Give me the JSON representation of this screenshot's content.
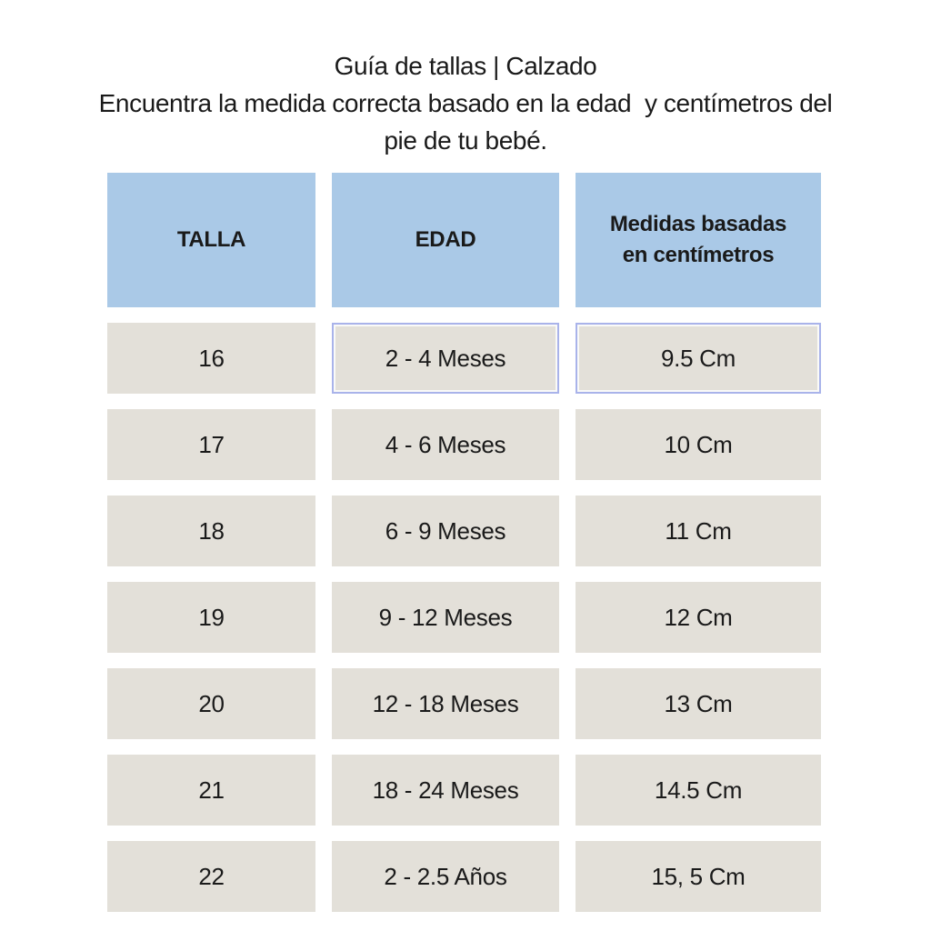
{
  "page": {
    "title": "Guía de tallas | Calzado",
    "subtitle_lines": [
      "Encuentra la medida correcta basado en la edad  y centímetros del",
      "pie de tu bebé."
    ]
  },
  "table": {
    "columns": [
      {
        "key": "talla",
        "label": "TALLA"
      },
      {
        "key": "edad",
        "label": "EDAD"
      },
      {
        "key": "medidas",
        "label": "Medidas basadas en centímetros"
      }
    ],
    "rows": [
      {
        "talla": "16",
        "edad": "2 - 4 Meses",
        "medidas": "9.5 Cm",
        "highlighted_cells": [
          "edad",
          "medidas"
        ]
      },
      {
        "talla": "17",
        "edad": "4 - 6 Meses",
        "medidas": "10 Cm",
        "highlighted_cells": []
      },
      {
        "talla": "18",
        "edad": "6 - 9 Meses",
        "medidas": "11 Cm",
        "highlighted_cells": []
      },
      {
        "talla": "19",
        "edad": "9 - 12 Meses",
        "medidas": "12 Cm",
        "highlighted_cells": []
      },
      {
        "talla": "20",
        "edad": "12 - 18 Meses",
        "medidas": "13 Cm",
        "highlighted_cells": []
      },
      {
        "talla": "21",
        "edad": "18 - 24 Meses",
        "medidas": "14.5 Cm",
        "highlighted_cells": []
      },
      {
        "talla": "22",
        "edad": "2 - 2.5 Años",
        "medidas": "15, 5 Cm",
        "highlighted_cells": []
      }
    ]
  },
  "colors": {
    "header_bg": "#aac9e7",
    "cell_bg": "#e3e0d9",
    "highlight_border": "#a9b3ea",
    "text": "#1a1a1a",
    "background": "#ffffff"
  }
}
